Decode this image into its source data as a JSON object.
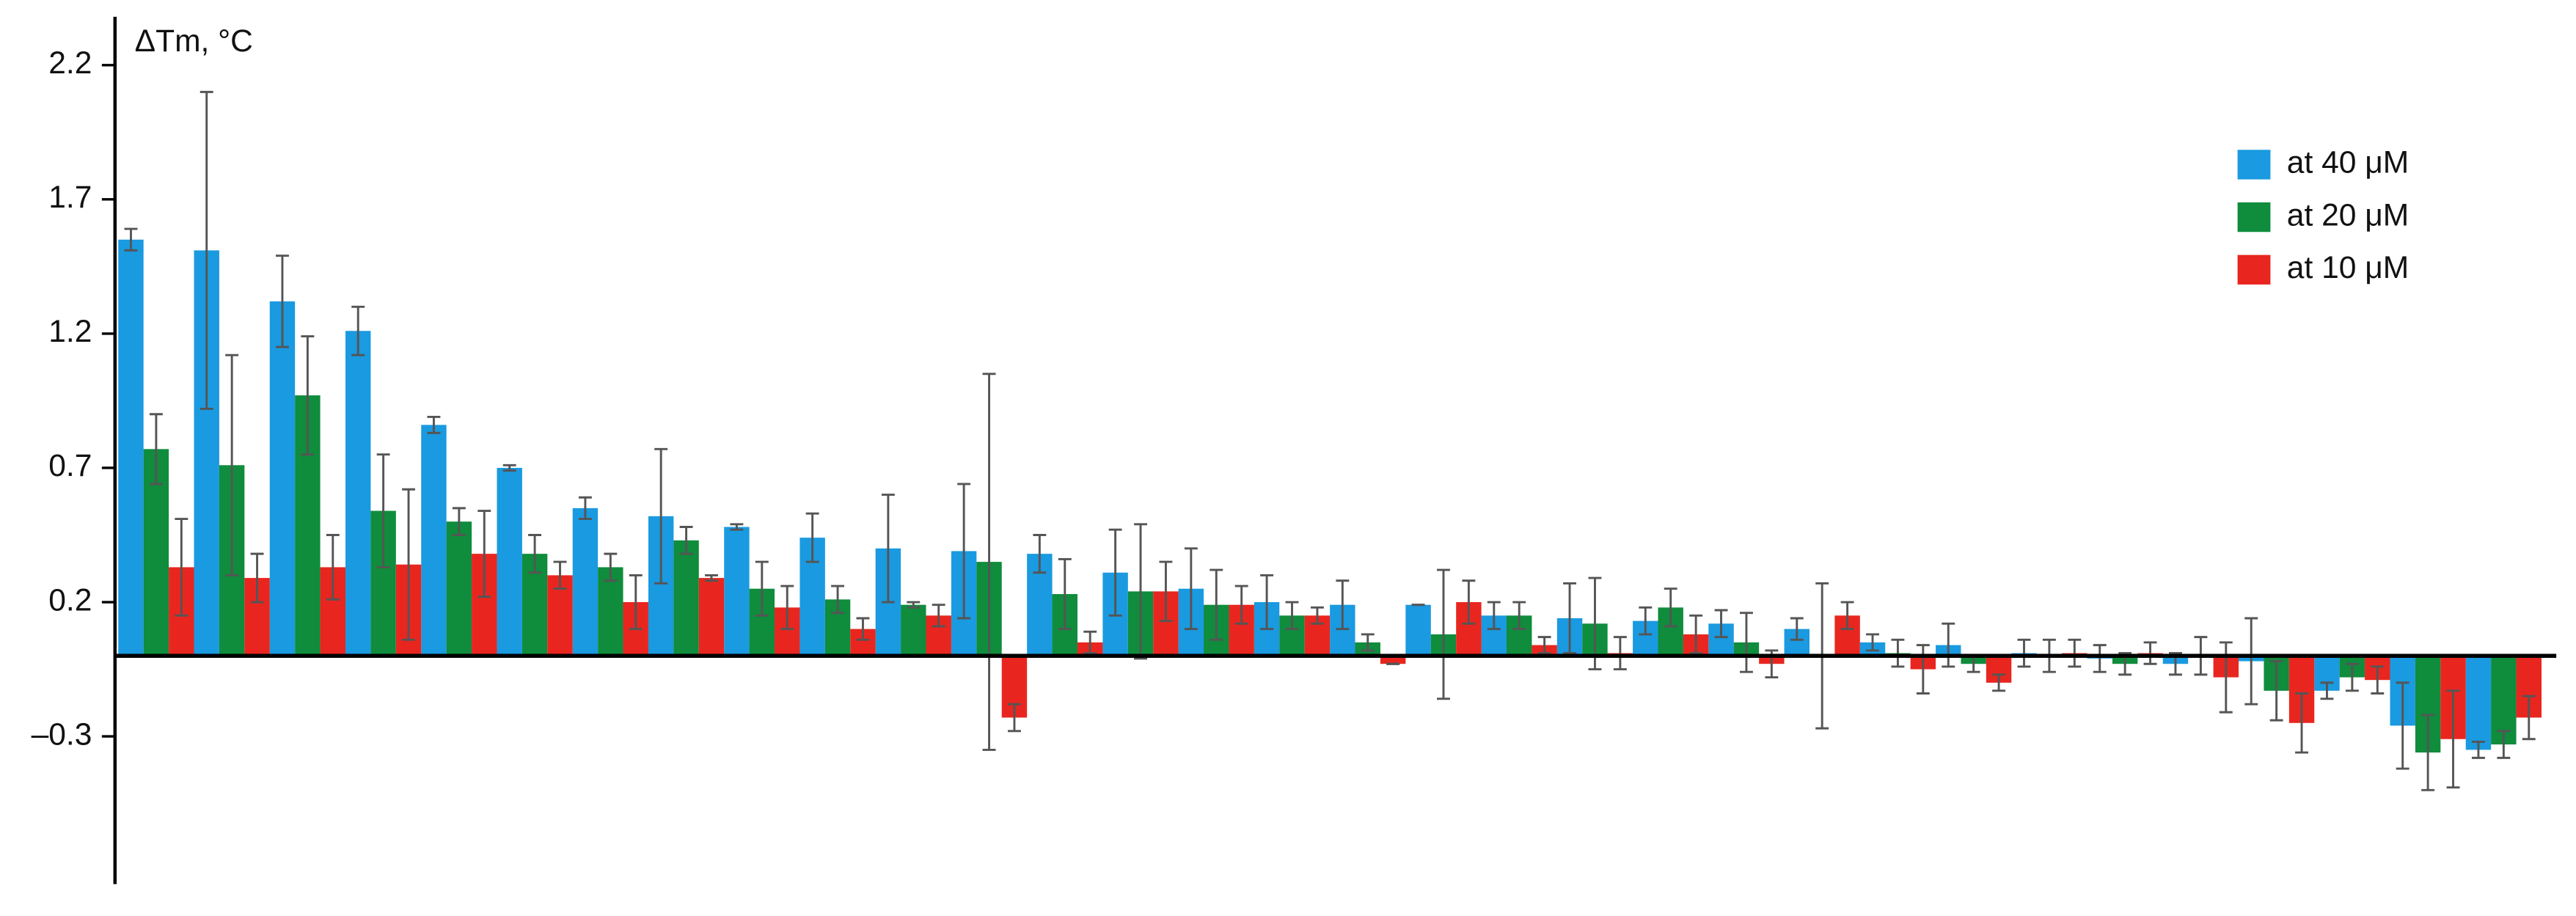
{
  "chart_data": {
    "type": "bar",
    "ylabel": "ΔTm, °C",
    "categories": [
      null,
      null,
      null,
      null,
      null,
      null,
      null,
      null,
      null,
      null,
      null,
      null,
      null,
      null,
      null,
      null,
      null,
      null,
      null,
      null,
      null,
      null,
      null,
      null,
      null,
      null,
      null,
      null,
      null,
      null,
      null,
      null
    ],
    "series": [
      {
        "name": "at 40 μM",
        "color": "#1a9ae0",
        "values": [
          1.55,
          1.51,
          1.32,
          1.21,
          0.86,
          0.7,
          0.55,
          0.52,
          0.48,
          0.44,
          0.4,
          0.39,
          0.38,
          0.31,
          0.25,
          0.2,
          0.19,
          0.19,
          0.15,
          0.14,
          0.13,
          0.12,
          0.1,
          0.05,
          0.04,
          0.01,
          -0.01,
          -0.03,
          -0.02,
          -0.13,
          -0.26,
          -0.35
        ],
        "errors": [
          0.04,
          0.59,
          0.17,
          0.09,
          0.03,
          0.01,
          0.04,
          0.25,
          0.01,
          0.09,
          0.2,
          0.25,
          0.07,
          0.16,
          0.15,
          0.1,
          0.09,
          0,
          0.05,
          0.13,
          0.05,
          0.05,
          0.04,
          0.03,
          0.08,
          0.05,
          0.05,
          0.04,
          0.16,
          0.03,
          0.16,
          0.03
        ]
      },
      {
        "name": "at 20 μM",
        "color": "#0f8c3c",
        "values": [
          0.77,
          0.71,
          0.97,
          0.54,
          0.5,
          0.38,
          0.33,
          0.43,
          0.25,
          0.21,
          0.19,
          0.35,
          0.23,
          0.24,
          0.19,
          0.15,
          0.05,
          0.08,
          0.15,
          0.12,
          0.18,
          0.05,
          0,
          0.01,
          -0.03,
          0,
          -0.03,
          0,
          -0.13,
          -0.08,
          -0.36,
          -0.33
        ],
        "errors": [
          0.13,
          0.41,
          0.22,
          0.21,
          0.05,
          0.07,
          0.05,
          0.05,
          0.1,
          0.05,
          0.01,
          0.7,
          0.13,
          0.25,
          0.13,
          0.05,
          0.03,
          0.24,
          0.05,
          0.17,
          0.07,
          0.11,
          0.27,
          0.05,
          0.03,
          0.06,
          0.04,
          0.07,
          0.11,
          0.05,
          0.14,
          0.05
        ]
      },
      {
        "name": "at 10 μM",
        "color": "#e8261f",
        "values": [
          0.33,
          0.29,
          0.33,
          0.34,
          0.38,
          0.3,
          0.2,
          0.29,
          0.18,
          0.1,
          0.15,
          -0.23,
          0.05,
          0.24,
          0.19,
          0.15,
          -0.03,
          0.2,
          0.04,
          0.01,
          0.08,
          -0.03,
          0.15,
          -0.05,
          -0.1,
          0.01,
          0.01,
          -0.08,
          -0.25,
          -0.09,
          -0.31,
          -0.23
        ],
        "errors": [
          0.18,
          0.09,
          0.12,
          0.28,
          0.16,
          0.05,
          0.1,
          0.01,
          0.08,
          0.04,
          0.04,
          0.05,
          0.04,
          0.11,
          0.07,
          0.03,
          0,
          0.08,
          0.03,
          0.06,
          0.07,
          0.05,
          0.05,
          0.09,
          0.03,
          0.05,
          0.04,
          0.13,
          0.11,
          0.05,
          0.18,
          0.08
        ]
      }
    ],
    "ylim": [
      -0.85,
      2.38
    ],
    "yticks": [
      {
        "value": -0.3,
        "label": "–0.3"
      },
      0.2,
      0.7,
      1.2,
      1.7,
      2.2
    ],
    "error_color": "#555555",
    "grid": false,
    "legend": "upper right"
  }
}
